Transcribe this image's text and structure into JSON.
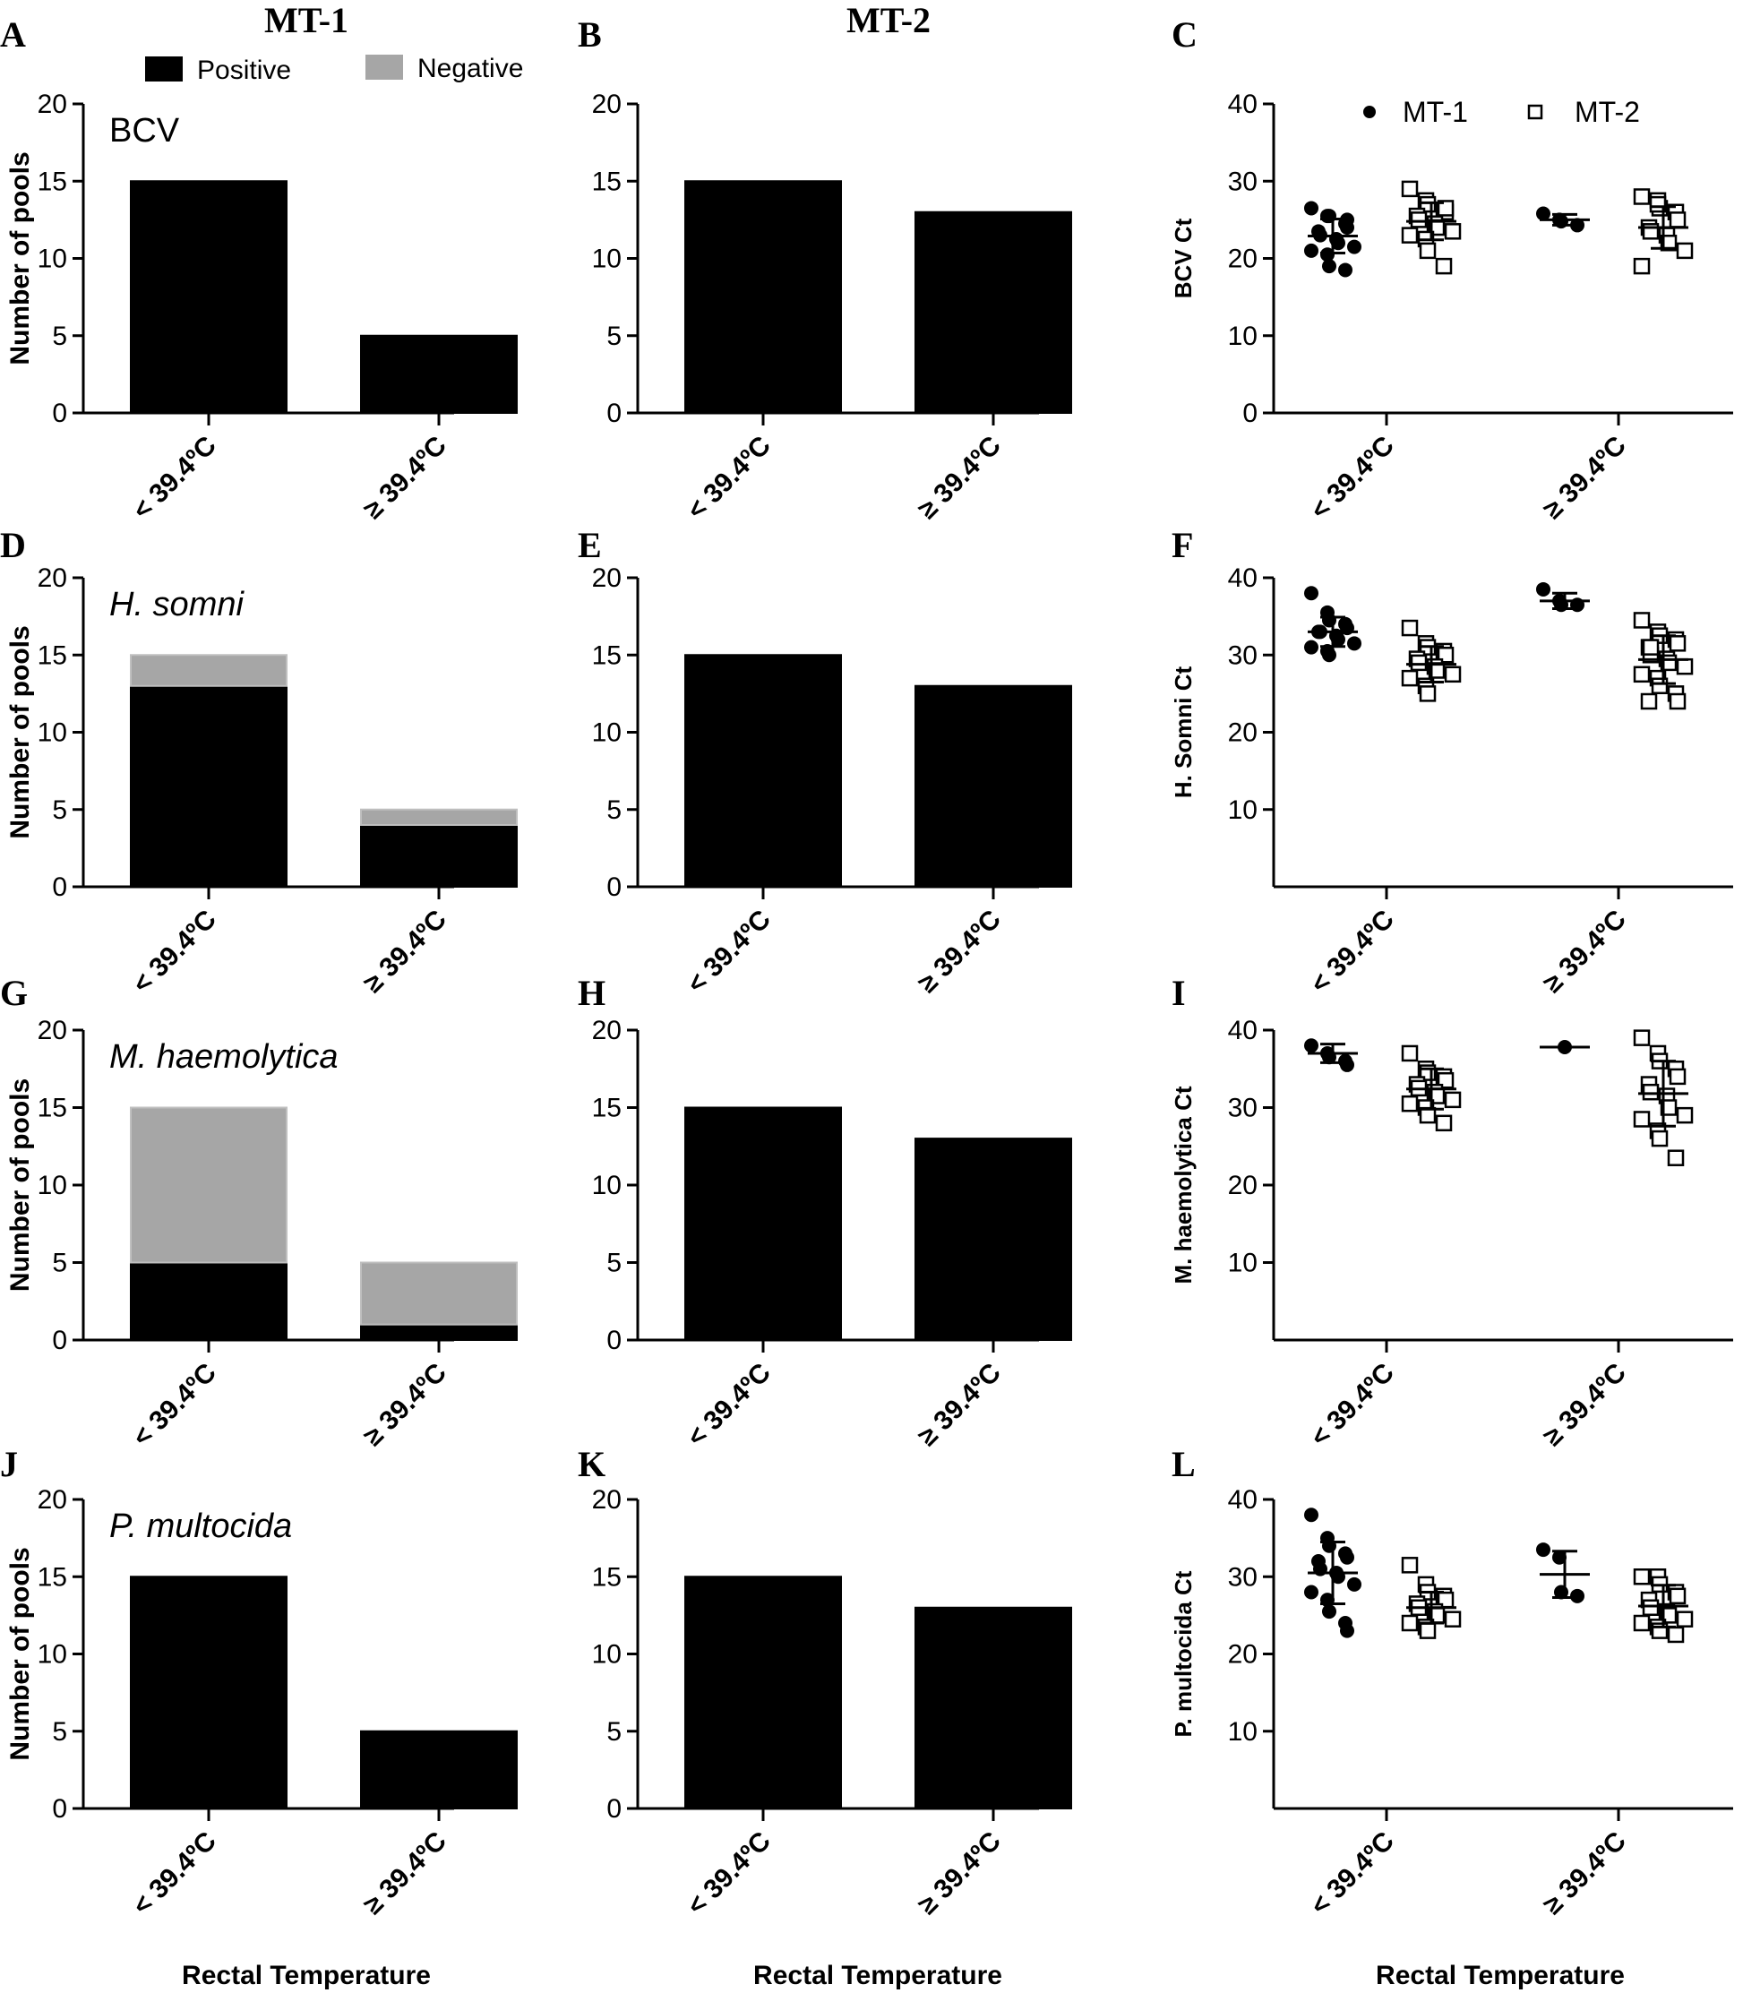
{
  "column_headers": [
    "MT-1",
    "MT-2"
  ],
  "xlabel": "Rectal Temperature",
  "categories": [
    "< 39.4ºC",
    "≥ 39.4ºC"
  ],
  "colors": {
    "positive": "#000000",
    "negative": "#a6a6a6",
    "axis": "#000000"
  },
  "legend_bars": {
    "positive": "Positive",
    "negative": "Negative"
  },
  "legend_scatter": {
    "mt1": "MT-1",
    "mt2": "MT-2"
  },
  "chart_data": [
    {
      "panel": "A",
      "type": "bar",
      "stacked": true,
      "pathogen_label": "BCV",
      "pathogen_italic": false,
      "ylabel": "Number of pools",
      "ylim": [
        0,
        20
      ],
      "yticks": [
        0,
        5,
        10,
        15,
        20
      ],
      "categories": [
        "< 39.4ºC",
        "≥ 39.4ºC"
      ],
      "series": [
        {
          "name": "Positive",
          "values": [
            15,
            5
          ]
        },
        {
          "name": "Negative",
          "values": [
            0,
            0
          ]
        }
      ]
    },
    {
      "panel": "B",
      "type": "bar",
      "stacked": true,
      "ylim": [
        0,
        20
      ],
      "yticks": [
        0,
        5,
        10,
        15,
        20
      ],
      "categories": [
        "< 39.4ºC",
        "≥ 39.4ºC"
      ],
      "series": [
        {
          "name": "Positive",
          "values": [
            15,
            13
          ]
        },
        {
          "name": "Negative",
          "values": [
            0,
            0
          ]
        }
      ]
    },
    {
      "panel": "C",
      "type": "scatter",
      "ylabel": "BCV Ct",
      "ylim": [
        0,
        40
      ],
      "yticks": [
        0,
        10,
        20,
        30,
        40
      ],
      "categories": [
        "< 39.4ºC",
        "≥ 39.4ºC"
      ],
      "series": [
        {
          "name": "MT-1",
          "groups": [
            {
              "values": [
                26.5,
                25.5,
                25.5,
                24.5,
                24,
                23.5,
                23,
                22.5,
                22,
                21.5,
                21,
                20.5,
                19,
                18.5,
                25
              ],
              "mean": 22.9,
              "sd": 2.2
            },
            {
              "values": [
                25.8,
                25,
                24.8,
                24.3
              ],
              "mean": 25,
              "sd": 0.7
            }
          ]
        },
        {
          "name": "MT-2",
          "groups": [
            {
              "values": [
                29,
                27.5,
                27,
                26,
                26,
                25.5,
                25,
                24.5,
                24,
                23.5,
                23,
                22.5,
                21,
                19,
                26.5
              ],
              "mean": 24.8,
              "sd": 2.4
            },
            {
              "values": [
                28,
                27.5,
                26.5,
                26,
                25,
                24,
                23.5,
                23,
                22,
                21,
                19,
                27
              ],
              "mean": 24,
              "sd": 2.7
            }
          ]
        }
      ]
    },
    {
      "panel": "D",
      "type": "bar",
      "stacked": true,
      "pathogen_label": "H. somni",
      "pathogen_italic": true,
      "ylabel": "Number of pools",
      "ylim": [
        0,
        20
      ],
      "yticks": [
        0,
        5,
        10,
        15,
        20
      ],
      "categories": [
        "< 39.4ºC",
        "≥ 39.4ºC"
      ],
      "series": [
        {
          "name": "Positive",
          "values": [
            13,
            4
          ]
        },
        {
          "name": "Negative",
          "values": [
            2,
            1
          ]
        }
      ]
    },
    {
      "panel": "E",
      "type": "bar",
      "stacked": true,
      "ylim": [
        0,
        20
      ],
      "yticks": [
        0,
        5,
        10,
        15,
        20
      ],
      "categories": [
        "< 39.4ºC",
        "≥ 39.4ºC"
      ],
      "series": [
        {
          "name": "Positive",
          "values": [
            15,
            13
          ]
        },
        {
          "name": "Negative",
          "values": [
            0,
            0
          ]
        }
      ]
    },
    {
      "panel": "F",
      "type": "scatter",
      "ylabel": "H. Somni Ct",
      "ylim": [
        0,
        40
      ],
      "yticks": [
        10,
        20,
        30,
        40
      ],
      "categories": [
        "< 39.4ºC",
        "≥ 39.4ºC"
      ],
      "series": [
        {
          "name": "MT-1",
          "groups": [
            {
              "values": [
                38,
                35.5,
                34.5,
                34,
                33.5,
                33,
                33,
                32.5,
                32,
                31.5,
                31,
                30.5,
                30
              ],
              "mean": 33,
              "sd": 1.9
            },
            {
              "values": [
                38.5,
                37,
                36.5,
                36.5
              ],
              "mean": 37,
              "sd": 1
            }
          ]
        },
        {
          "name": "MT-2",
          "groups": [
            {
              "values": [
                33.5,
                31.5,
                31,
                30.5,
                30,
                29.5,
                29,
                28.5,
                28,
                27.5,
                27,
                26,
                25
              ],
              "mean": 28.8,
              "sd": 2.3
            },
            {
              "values": [
                34.5,
                33,
                32.5,
                32,
                31.5,
                31,
                30,
                29.5,
                29,
                28.5,
                27.5,
                27,
                26,
                25,
                24,
                24,
                31
              ],
              "mean": 29.4,
              "sd": 3.1
            }
          ]
        }
      ]
    },
    {
      "panel": "G",
      "type": "bar",
      "stacked": true,
      "pathogen_label": "M. haemolytica",
      "pathogen_italic": true,
      "ylabel": "Number of pools",
      "ylim": [
        0,
        20
      ],
      "yticks": [
        0,
        5,
        10,
        15,
        20
      ],
      "categories": [
        "< 39.4ºC",
        "≥ 39.4ºC"
      ],
      "series": [
        {
          "name": "Positive",
          "values": [
            5,
            1
          ]
        },
        {
          "name": "Negative",
          "values": [
            10,
            4
          ]
        }
      ]
    },
    {
      "panel": "H",
      "type": "bar",
      "stacked": true,
      "ylim": [
        0,
        20
      ],
      "yticks": [
        0,
        5,
        10,
        15,
        20
      ],
      "categories": [
        "< 39.4ºC",
        "≥ 39.4ºC"
      ],
      "series": [
        {
          "name": "Positive",
          "values": [
            15,
            13
          ]
        },
        {
          "name": "Negative",
          "values": [
            0,
            0
          ]
        }
      ]
    },
    {
      "panel": "I",
      "type": "scatter",
      "ylabel": "M. haemolytica Ct",
      "ylim": [
        0,
        40
      ],
      "yticks": [
        10,
        20,
        30,
        40
      ],
      "categories": [
        "< 39.4ºC",
        "≥ 39.4ºC"
      ],
      "series": [
        {
          "name": "MT-1",
          "groups": [
            {
              "values": [
                38,
                37,
                36.5,
                36,
                35.5
              ],
              "mean": 37,
              "sd": 1.2
            },
            {
              "values": [
                37.8
              ],
              "mean": 37.8,
              "sd": 0
            }
          ]
        },
        {
          "name": "MT-2",
          "groups": [
            {
              "values": [
                37,
                35,
                34.5,
                34,
                33.5,
                33,
                32.5,
                32,
                31.5,
                31,
                30.5,
                30,
                29,
                28
              ],
              "mean": 32.4,
              "sd": 2.6
            },
            {
              "values": [
                39,
                37,
                36,
                35,
                34,
                33,
                32,
                31.5,
                30,
                29,
                28.5,
                27,
                26,
                23.5
              ],
              "mean": 31.8,
              "sd": 4.2
            }
          ]
        }
      ]
    },
    {
      "panel": "J",
      "type": "bar",
      "stacked": true,
      "pathogen_label": "P. multocida",
      "pathogen_italic": true,
      "ylabel": "Number of pools",
      "ylim": [
        0,
        20
      ],
      "yticks": [
        0,
        5,
        10,
        15,
        20
      ],
      "categories": [
        "< 39.4ºC",
        "≥ 39.4ºC"
      ],
      "series": [
        {
          "name": "Positive",
          "values": [
            15,
            5
          ]
        },
        {
          "name": "Negative",
          "values": [
            0,
            0
          ]
        }
      ]
    },
    {
      "panel": "K",
      "type": "bar",
      "stacked": true,
      "ylim": [
        0,
        20
      ],
      "yticks": [
        0,
        5,
        10,
        15,
        20
      ],
      "categories": [
        "< 39.4ºC",
        "≥ 39.4ºC"
      ],
      "series": [
        {
          "name": "Positive",
          "values": [
            15,
            13
          ]
        },
        {
          "name": "Negative",
          "values": [
            0,
            0
          ]
        }
      ]
    },
    {
      "panel": "L",
      "type": "scatter",
      "ylabel": "P. multocida  Ct",
      "ylim": [
        0,
        40
      ],
      "yticks": [
        10,
        20,
        30,
        40
      ],
      "categories": [
        "< 39.4ºC",
        "≥ 39.4ºC"
      ],
      "series": [
        {
          "name": "MT-1",
          "groups": [
            {
              "values": [
                38,
                35,
                34,
                33,
                32.5,
                32,
                31,
                30.5,
                30,
                29,
                28,
                27,
                25.5,
                24,
                23
              ],
              "mean": 30.5,
              "sd": 4
            },
            {
              "values": [
                33.5,
                32.5,
                28,
                27.5
              ],
              "mean": 30.3,
              "sd": 3
            }
          ]
        },
        {
          "name": "MT-2",
          "groups": [
            {
              "values": [
                31.5,
                29,
                28,
                27.5,
                27,
                26.5,
                26,
                25.5,
                25,
                24.5,
                24,
                23.5,
                23
              ],
              "mean": 26,
              "sd": 2
            },
            {
              "values": [
                30,
                30,
                29,
                28,
                27.5,
                27,
                26,
                25.5,
                25,
                24.5,
                24,
                23.5,
                23,
                22.5
              ],
              "mean": 26.2,
              "sd": 2.7
            }
          ]
        }
      ]
    }
  ]
}
